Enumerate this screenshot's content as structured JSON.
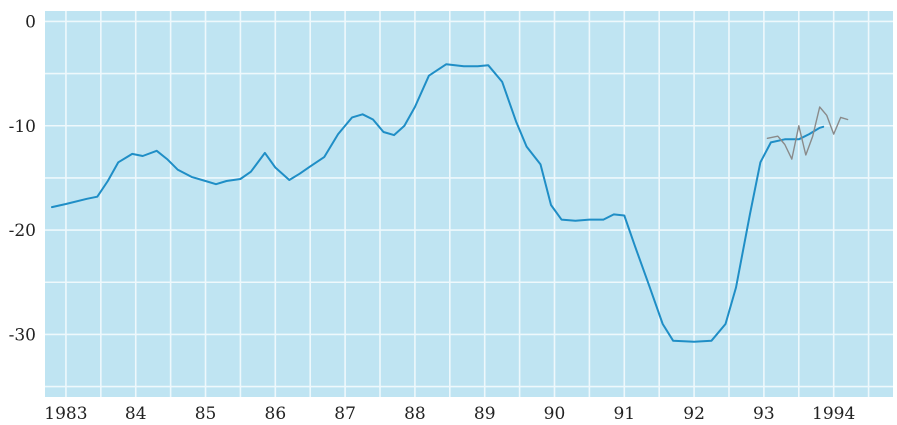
{
  "chart_data": {
    "type": "line",
    "title": "",
    "xlabel": "",
    "ylabel": "",
    "xlim": [
      1982.7,
      1994.85
    ],
    "ylim": [
      -36,
      1
    ],
    "grid": true,
    "colors": {
      "background": "#bfe4f2",
      "grid": "#eef8fc",
      "main_line": "#1f8ec6",
      "secondary_line": "#8a8a8a"
    },
    "x_tick_labels": [
      {
        "value": 1983,
        "label": "1983"
      },
      {
        "value": 1984,
        "label": "84"
      },
      {
        "value": 1985,
        "label": "85"
      },
      {
        "value": 1986,
        "label": "86"
      },
      {
        "value": 1987,
        "label": "87"
      },
      {
        "value": 1988,
        "label": "88"
      },
      {
        "value": 1989,
        "label": "89"
      },
      {
        "value": 1990,
        "label": "90"
      },
      {
        "value": 1991,
        "label": "91"
      },
      {
        "value": 1992,
        "label": "92"
      },
      {
        "value": 1993,
        "label": "93"
      },
      {
        "value": 1994,
        "label": "1994"
      }
    ],
    "y_tick_labels": [
      {
        "value": 0,
        "label": "0"
      },
      {
        "value": -10,
        "label": "-10"
      },
      {
        "value": -20,
        "label": "-20"
      },
      {
        "value": -30,
        "label": "-30"
      }
    ],
    "series": [
      {
        "color": "#1f8ec6",
        "points": [
          [
            1982.8,
            -17.8
          ],
          [
            1983.0,
            -17.5
          ],
          [
            1983.3,
            -17.0
          ],
          [
            1983.45,
            -16.8
          ],
          [
            1983.6,
            -15.3
          ],
          [
            1983.75,
            -13.5
          ],
          [
            1983.95,
            -12.7
          ],
          [
            1984.1,
            -12.9
          ],
          [
            1984.3,
            -12.4
          ],
          [
            1984.45,
            -13.2
          ],
          [
            1984.6,
            -14.2
          ],
          [
            1984.8,
            -14.9
          ],
          [
            1985.0,
            -15.3
          ],
          [
            1985.15,
            -15.6
          ],
          [
            1985.3,
            -15.3
          ],
          [
            1985.5,
            -15.1
          ],
          [
            1985.65,
            -14.4
          ],
          [
            1985.85,
            -12.6
          ],
          [
            1986.0,
            -14.0
          ],
          [
            1986.2,
            -15.2
          ],
          [
            1986.35,
            -14.6
          ],
          [
            1986.5,
            -13.9
          ],
          [
            1986.7,
            -13.0
          ],
          [
            1986.9,
            -10.8
          ],
          [
            1987.1,
            -9.2
          ],
          [
            1987.25,
            -8.9
          ],
          [
            1987.4,
            -9.4
          ],
          [
            1987.55,
            -10.6
          ],
          [
            1987.7,
            -10.9
          ],
          [
            1987.85,
            -10.0
          ],
          [
            1988.0,
            -8.2
          ],
          [
            1988.2,
            -5.2
          ],
          [
            1988.45,
            -4.1
          ],
          [
            1988.7,
            -4.3
          ],
          [
            1988.9,
            -4.3
          ],
          [
            1989.05,
            -4.2
          ],
          [
            1989.25,
            -5.8
          ],
          [
            1989.45,
            -9.6
          ],
          [
            1989.6,
            -12.0
          ],
          [
            1989.8,
            -13.7
          ],
          [
            1989.95,
            -17.6
          ],
          [
            1990.1,
            -19.0
          ],
          [
            1990.3,
            -19.1
          ],
          [
            1990.5,
            -19.0
          ],
          [
            1990.7,
            -19.0
          ],
          [
            1990.85,
            -18.5
          ],
          [
            1991.0,
            -18.6
          ],
          [
            1991.15,
            -21.5
          ],
          [
            1991.35,
            -25.2
          ],
          [
            1991.55,
            -29.0
          ],
          [
            1991.7,
            -30.6
          ],
          [
            1992.0,
            -30.7
          ],
          [
            1992.25,
            -30.6
          ],
          [
            1992.45,
            -29.0
          ],
          [
            1992.6,
            -25.5
          ],
          [
            1992.8,
            -18.5
          ],
          [
            1992.95,
            -13.5
          ],
          [
            1993.1,
            -11.6
          ],
          [
            1993.3,
            -11.3
          ],
          [
            1993.5,
            -11.3
          ],
          [
            1993.65,
            -10.8
          ],
          [
            1993.8,
            -10.2
          ],
          [
            1993.85,
            -10.1
          ]
        ]
      },
      {
        "color": "#8a8a8a",
        "points": [
          [
            1993.05,
            -11.2
          ],
          [
            1993.2,
            -11.0
          ],
          [
            1993.3,
            -11.8
          ],
          [
            1993.4,
            -13.2
          ],
          [
            1993.5,
            -10.0
          ],
          [
            1993.6,
            -12.8
          ],
          [
            1993.7,
            -11.0
          ],
          [
            1993.8,
            -8.2
          ],
          [
            1993.9,
            -9.0
          ],
          [
            1994.0,
            -10.8
          ],
          [
            1994.1,
            -9.2
          ],
          [
            1994.2,
            -9.4
          ]
        ]
      }
    ]
  }
}
